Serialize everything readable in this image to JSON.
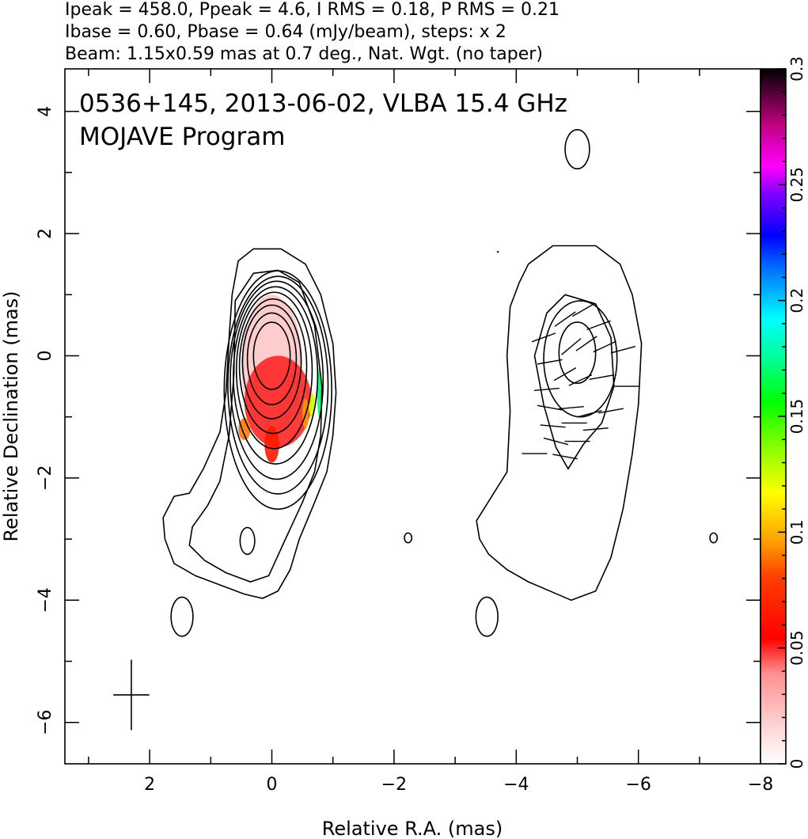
{
  "header": {
    "line1": "Ipeak = 458.0, Ppeak = 4.6, I RMS = 0.18, P RMS = 0.21",
    "line2": "Ibase = 0.60, Pbase = 0.64 (mJy/beam), steps: x 2",
    "line3": "Beam: 1.15x0.59 mas at 0.7 deg., Nat. Wgt. (no taper)"
  },
  "chart_data": {
    "type": "heatmap",
    "title": "0536+145, 2013-06-02, VLBA 15.4 GHz",
    "subtitle": "MOJAVE Program",
    "xlabel": "Relative R.A. (mas)",
    "ylabel": "Relative Declination (mas)",
    "xlim": [
      3.4,
      -8.0
    ],
    "ylim": [
      -6.7,
      4.7
    ],
    "x_ticks": [
      2,
      0,
      -2,
      -4,
      -6,
      -8
    ],
    "x_tick_labels": [
      "2",
      "0",
      "−2",
      "−4",
      "−6",
      "−8"
    ],
    "y_ticks": [
      4,
      2,
      0,
      -2,
      -4,
      -6
    ],
    "y_tick_labels": [
      "4",
      "2",
      "0",
      "−2",
      "−4",
      "−6"
    ],
    "colorbar": {
      "min": 0,
      "max": 0.3,
      "ticks": [
        0,
        0.05,
        0.1,
        0.15,
        0.2,
        0.25,
        0.3
      ],
      "tick_labels": [
        "0",
        "0.05",
        "0.1",
        "0.15",
        "0.2",
        "0.25",
        "0.3"
      ]
    },
    "beam": {
      "major_mas": 1.15,
      "minor_mas": 0.59,
      "pa_deg": 0.7,
      "center": [
        2.3,
        -5.55
      ]
    },
    "left_panel": {
      "contour_rings": [
        {
          "dx": 0,
          "dy": 0,
          "rx": 0.3,
          "ry": 0.55
        },
        {
          "dx": 0,
          "dy": -0.05,
          "rx": 0.4,
          "ry": 0.75
        },
        {
          "dx": 0,
          "dy": -0.1,
          "rx": 0.48,
          "ry": 0.93
        },
        {
          "dx": -0.02,
          "dy": -0.17,
          "rx": 0.55,
          "ry": 1.1
        },
        {
          "dx": -0.04,
          "dy": -0.24,
          "rx": 0.62,
          "ry": 1.28
        },
        {
          "dx": -0.06,
          "dy": -0.32,
          "rx": 0.69,
          "ry": 1.45
        },
        {
          "dx": -0.08,
          "dy": -0.4,
          "rx": 0.76,
          "ry": 1.62
        },
        {
          "dx": -0.1,
          "dy": -0.48,
          "rx": 0.82,
          "ry": 1.78
        },
        {
          "dx": -0.1,
          "dy": -0.56,
          "rx": 0.88,
          "ry": 1.95
        }
      ],
      "outer_contours": [
        [
          [
            0.55,
            1.55
          ],
          [
            0.3,
            1.75
          ],
          [
            -0.15,
            1.75
          ],
          [
            -0.55,
            1.5
          ],
          [
            -0.8,
            1.0
          ],
          [
            -1.0,
            0.2
          ],
          [
            -1.05,
            -0.6
          ],
          [
            -1.0,
            -1.3
          ],
          [
            -0.9,
            -1.9
          ],
          [
            -0.7,
            -2.4
          ],
          [
            -0.45,
            -3.0
          ],
          [
            -0.3,
            -3.5
          ],
          [
            -0.1,
            -3.85
          ],
          [
            0.15,
            -3.97
          ],
          [
            0.45,
            -3.9
          ],
          [
            0.85,
            -3.75
          ],
          [
            1.25,
            -3.6
          ],
          [
            1.6,
            -3.4
          ],
          [
            1.75,
            -3.0
          ],
          [
            1.78,
            -2.65
          ],
          [
            1.6,
            -2.3
          ],
          [
            1.35,
            -2.25
          ],
          [
            1.12,
            -1.85
          ],
          [
            0.85,
            -1.25
          ],
          [
            0.75,
            -0.6
          ],
          [
            0.7,
            0.3
          ],
          [
            0.65,
            1.0
          ],
          [
            0.55,
            1.55
          ]
        ],
        [
          [
            0.6,
            0.9
          ],
          [
            0.3,
            1.35
          ],
          [
            -0.1,
            1.4
          ],
          [
            -0.45,
            1.2
          ],
          [
            -0.7,
            0.5
          ],
          [
            -0.82,
            -0.5
          ],
          [
            -0.8,
            -1.3
          ],
          [
            -0.7,
            -1.9
          ],
          [
            -0.5,
            -2.4
          ],
          [
            -0.2,
            -3.05
          ],
          [
            0.05,
            -3.6
          ],
          [
            0.35,
            -3.7
          ],
          [
            0.75,
            -3.55
          ],
          [
            1.1,
            -3.35
          ],
          [
            1.35,
            -3.1
          ],
          [
            1.3,
            -2.8
          ],
          [
            1.05,
            -2.45
          ],
          [
            0.85,
            -2.05
          ],
          [
            0.7,
            -1.3
          ],
          [
            0.62,
            -0.3
          ],
          [
            0.6,
            0.9
          ]
        ]
      ],
      "islands": [
        {
          "x": 0.4,
          "y": -3.03,
          "rx": 0.12,
          "ry": 0.22
        },
        {
          "x": 1.47,
          "y": -4.27,
          "rx": 0.18,
          "ry": 0.32
        },
        {
          "x": -2.23,
          "y": -2.98,
          "rx": 0.06,
          "ry": 0.08
        }
      ],
      "pol_pixels": [
        {
          "x": 0.0,
          "y": -0.15,
          "rx": 0.5,
          "ry": 1.15,
          "value": 0.02
        },
        {
          "x": -0.1,
          "y": -0.75,
          "rx": 0.55,
          "ry": 0.75,
          "value": 0.05
        },
        {
          "x": 0.0,
          "y": -1.45,
          "rx": 0.12,
          "ry": 0.3,
          "value": 0.065
        },
        {
          "x": 0.45,
          "y": -1.2,
          "rx": 0.1,
          "ry": 0.18,
          "value": 0.09
        },
        {
          "x": -0.55,
          "y": -0.95,
          "rx": 0.05,
          "ry": 0.25,
          "value": 0.095
        },
        {
          "x": -0.65,
          "y": -0.8,
          "rx": 0.05,
          "ry": 0.2,
          "value": 0.125
        },
        {
          "x": -0.78,
          "y": -0.6,
          "rx": 0.04,
          "ry": 0.4,
          "value": 0.17
        }
      ]
    },
    "right_panel": {
      "offset_x": -5.0,
      "outer_contour": [
        [
          -4.2,
          1.5
        ],
        [
          -4.6,
          1.8
        ],
        [
          -5.3,
          1.8
        ],
        [
          -5.7,
          1.5
        ],
        [
          -5.9,
          1.0
        ],
        [
          -6.05,
          0.2
        ],
        [
          -6.0,
          -0.8
        ],
        [
          -5.9,
          -1.6
        ],
        [
          -5.75,
          -2.5
        ],
        [
          -5.55,
          -3.3
        ],
        [
          -5.3,
          -3.85
        ],
        [
          -4.9,
          -4.0
        ],
        [
          -4.55,
          -3.85
        ],
        [
          -4.2,
          -3.7
        ],
        [
          -3.85,
          -3.5
        ],
        [
          -3.55,
          -3.25
        ],
        [
          -3.4,
          -3.0
        ],
        [
          -3.35,
          -2.7
        ],
        [
          -3.6,
          -2.3
        ],
        [
          -3.85,
          -1.9
        ],
        [
          -3.9,
          -0.9
        ],
        [
          -3.85,
          0.0
        ],
        [
          -3.9,
          0.8
        ],
        [
          -4.05,
          1.2
        ],
        [
          -4.2,
          1.5
        ]
      ],
      "contour_rings": [
        {
          "x": -5.0,
          "y": 0.05,
          "rx": 0.3,
          "ry": 0.5
        },
        {
          "x": -5.05,
          "y": -0.05,
          "rx": 0.6,
          "ry": 0.95
        }
      ],
      "mid_contour": [
        [
          -4.5,
          0.7
        ],
        [
          -4.8,
          1.0
        ],
        [
          -5.3,
          0.85
        ],
        [
          -5.55,
          0.3
        ],
        [
          -5.6,
          -0.5
        ],
        [
          -5.4,
          -1.1
        ],
        [
          -5.1,
          -1.45
        ],
        [
          -4.85,
          -1.85
        ],
        [
          -4.65,
          -1.5
        ],
        [
          -4.45,
          -0.8
        ],
        [
          -4.3,
          0.0
        ],
        [
          -4.5,
          0.7
        ]
      ],
      "islands": [
        {
          "x": -5.0,
          "y": 3.38,
          "rx": 0.2,
          "ry": 0.32
        },
        {
          "x": -3.52,
          "y": -4.27,
          "rx": 0.18,
          "ry": 0.32
        },
        {
          "x": -7.23,
          "y": -2.98,
          "rx": 0.06,
          "ry": 0.08
        }
      ],
      "evpa_vectors": [
        {
          "x": -4.45,
          "y": 0.3,
          "angle": 20
        },
        {
          "x": -4.8,
          "y": 0.6,
          "angle": 35
        },
        {
          "x": -5.1,
          "y": 0.75,
          "angle": 30
        },
        {
          "x": -5.35,
          "y": 0.5,
          "angle": 20
        },
        {
          "x": -4.55,
          "y": -0.1,
          "angle": 10
        },
        {
          "x": -4.9,
          "y": 0.15,
          "angle": 40
        },
        {
          "x": -5.15,
          "y": 0.2,
          "angle": 35
        },
        {
          "x": -5.45,
          "y": 0.15,
          "angle": 25
        },
        {
          "x": -5.75,
          "y": 0.1,
          "angle": 15
        },
        {
          "x": -4.5,
          "y": -0.55,
          "angle": 5
        },
        {
          "x": -4.8,
          "y": -0.3,
          "angle": 30
        },
        {
          "x": -5.05,
          "y": -0.4,
          "angle": 25
        },
        {
          "x": -5.4,
          "y": -0.35,
          "angle": 10
        },
        {
          "x": -5.8,
          "y": -0.5,
          "angle": 0
        },
        {
          "x": -4.55,
          "y": -0.85,
          "angle": -10
        },
        {
          "x": -4.9,
          "y": -0.85,
          "angle": 5
        },
        {
          "x": -5.2,
          "y": -0.95,
          "angle": 15
        },
        {
          "x": -5.55,
          "y": -0.9,
          "angle": 10
        },
        {
          "x": -4.6,
          "y": -1.15,
          "angle": -5
        },
        {
          "x": -4.95,
          "y": -1.1,
          "angle": 0
        },
        {
          "x": -5.3,
          "y": -1.2,
          "angle": 5
        },
        {
          "x": -4.65,
          "y": -1.4,
          "angle": -15
        },
        {
          "x": -5.0,
          "y": -1.4,
          "angle": 0
        },
        {
          "x": -4.8,
          "y": -1.65,
          "angle": -10
        },
        {
          "x": -4.3,
          "y": -1.6,
          "angle": 0
        }
      ],
      "dot": {
        "x": -3.7,
        "y": 1.7
      }
    }
  }
}
